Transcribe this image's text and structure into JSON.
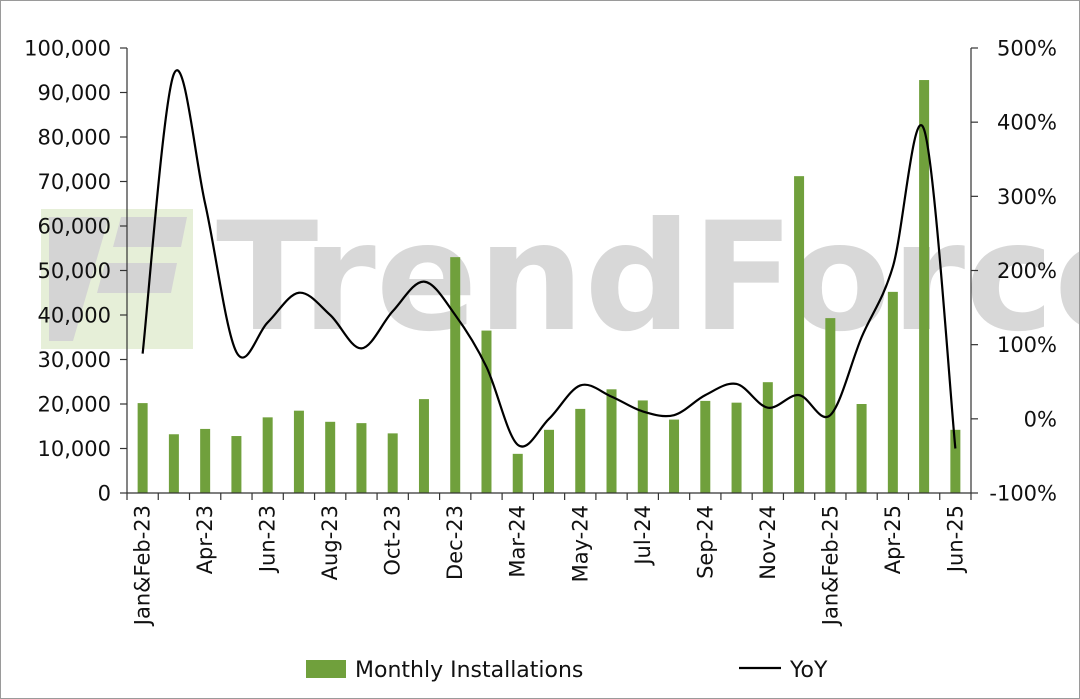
{
  "watermark": {
    "text": "TrendForce",
    "logo_color": "#e6efd8",
    "text_color": "#d4d4d4"
  },
  "colors": {
    "bar": "#70a03c",
    "line": "#000000",
    "axis": "#333333"
  },
  "chart_data": {
    "type": "bar",
    "categories": [
      "Jan&Feb-23",
      "Mar-23",
      "Apr-23",
      "May-23",
      "Jun-23",
      "Jul-23",
      "Aug-23",
      "Sep-23",
      "Oct-23",
      "Nov-23",
      "Dec-23",
      "Jan&Feb-24",
      "Mar-24",
      "Apr-24",
      "May-24",
      "Jun-24",
      "Jul-24",
      "Aug-24",
      "Sep-24",
      "Oct-24",
      "Nov-24",
      "Dec-24",
      "Jan&Feb-25",
      "Mar-25",
      "Apr-25",
      "May-25",
      "Jun-25"
    ],
    "tick_labels": [
      "Jan&Feb-23",
      "",
      "Apr-23",
      "",
      "Jun-23",
      "",
      "Aug-23",
      "",
      "Oct-23",
      "",
      "Dec-23",
      "",
      "Mar-24",
      "",
      "May-24",
      "",
      "Jul-24",
      "",
      "Sep-24",
      "",
      "Nov-24",
      "",
      "Jan&Feb-25",
      "",
      "Apr-25",
      "",
      "Jun-25"
    ],
    "series": [
      {
        "name": "Monthly Installations",
        "type": "bar",
        "axis": "left",
        "values": [
          20200,
          13200,
          14400,
          12800,
          17000,
          18500,
          16000,
          15700,
          13400,
          21100,
          53000,
          36500,
          8800,
          14200,
          18900,
          23300,
          20800,
          16500,
          20700,
          20300,
          24900,
          71200,
          39300,
          20000,
          45200,
          92800,
          14200
        ]
      },
      {
        "name": "YoY",
        "type": "line",
        "axis": "right",
        "values": [
          88,
          465,
          290,
          90,
          130,
          170,
          140,
          95,
          145,
          185,
          140,
          70,
          -35,
          0,
          45,
          30,
          10,
          5,
          32,
          47,
          15,
          32,
          5,
          110,
          205,
          390,
          -40
        ]
      }
    ],
    "y_left": {
      "min": 0,
      "max": 100000,
      "ticks": [
        0,
        10000,
        20000,
        30000,
        40000,
        50000,
        60000,
        70000,
        80000,
        90000,
        100000
      ],
      "tick_labels": [
        "0",
        "10,000",
        "20,000",
        "30,000",
        "40,000",
        "50,000",
        "60,000",
        "70,000",
        "80,000",
        "90,000",
        "100,000"
      ]
    },
    "y_right": {
      "min": -100,
      "max": 500,
      "ticks": [
        -100,
        0,
        100,
        200,
        300,
        400,
        500
      ],
      "tick_labels": [
        "-100%",
        "0%",
        "100%",
        "200%",
        "300%",
        "400%",
        "500%"
      ]
    },
    "legend": {
      "position": "bottom",
      "items": [
        "Monthly Installations",
        "YoY"
      ]
    },
    "grid": false,
    "title": "",
    "xlabel": "",
    "ylabel": ""
  }
}
